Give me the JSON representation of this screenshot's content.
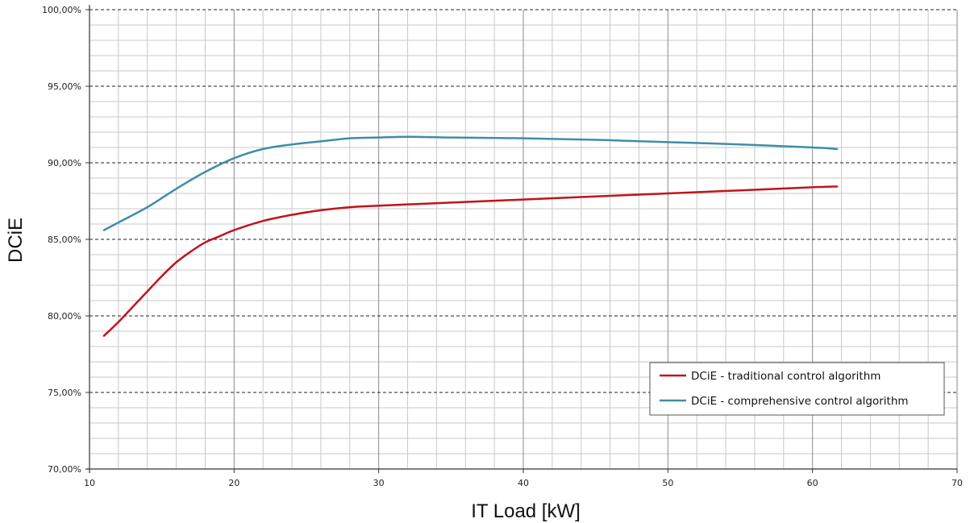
{
  "chart_data": {
    "type": "line",
    "title": "",
    "xlabel": "IT Load [kW]",
    "ylabel": "DCiE",
    "xlim": [
      10,
      70
    ],
    "ylim": [
      70,
      100
    ],
    "x_ticks": [
      "10",
      "20",
      "30",
      "40",
      "50",
      "60",
      "70"
    ],
    "y_ticks": [
      "70,00%",
      "75,00%",
      "80,00%",
      "85,00%",
      "90,00%",
      "95,00%",
      "100,00%"
    ],
    "grid": true,
    "legend_position": "bottom-right",
    "series": [
      {
        "name": "DCiE - traditional control algorithm",
        "color": "#c0141b",
        "points": [
          [
            11,
            78.7
          ],
          [
            12,
            79.6
          ],
          [
            13,
            80.6
          ],
          [
            14,
            81.6
          ],
          [
            15,
            82.6
          ],
          [
            16,
            83.5
          ],
          [
            17,
            84.2
          ],
          [
            18,
            84.8
          ],
          [
            19,
            85.2
          ],
          [
            20,
            85.6
          ],
          [
            22,
            86.2
          ],
          [
            24,
            86.6
          ],
          [
            26,
            86.9
          ],
          [
            28,
            87.1
          ],
          [
            30,
            87.2
          ],
          [
            35,
            87.4
          ],
          [
            40,
            87.6
          ],
          [
            45,
            87.8
          ],
          [
            50,
            88.0
          ],
          [
            55,
            88.2
          ],
          [
            60,
            88.4
          ],
          [
            61.7,
            88.45
          ]
        ]
      },
      {
        "name": "DCiE - comprehensive control algorithm",
        "color": "#3f8ea6",
        "points": [
          [
            11,
            85.6
          ],
          [
            12,
            86.1
          ],
          [
            14,
            87.1
          ],
          [
            16,
            88.3
          ],
          [
            18,
            89.4
          ],
          [
            20,
            90.3
          ],
          [
            22,
            90.9
          ],
          [
            24,
            91.2
          ],
          [
            26,
            91.4
          ],
          [
            28,
            91.6
          ],
          [
            30,
            91.65
          ],
          [
            32,
            91.7
          ],
          [
            35,
            91.65
          ],
          [
            40,
            91.6
          ],
          [
            45,
            91.5
          ],
          [
            50,
            91.35
          ],
          [
            55,
            91.2
          ],
          [
            60,
            91.0
          ],
          [
            61.7,
            90.9
          ]
        ]
      }
    ]
  }
}
